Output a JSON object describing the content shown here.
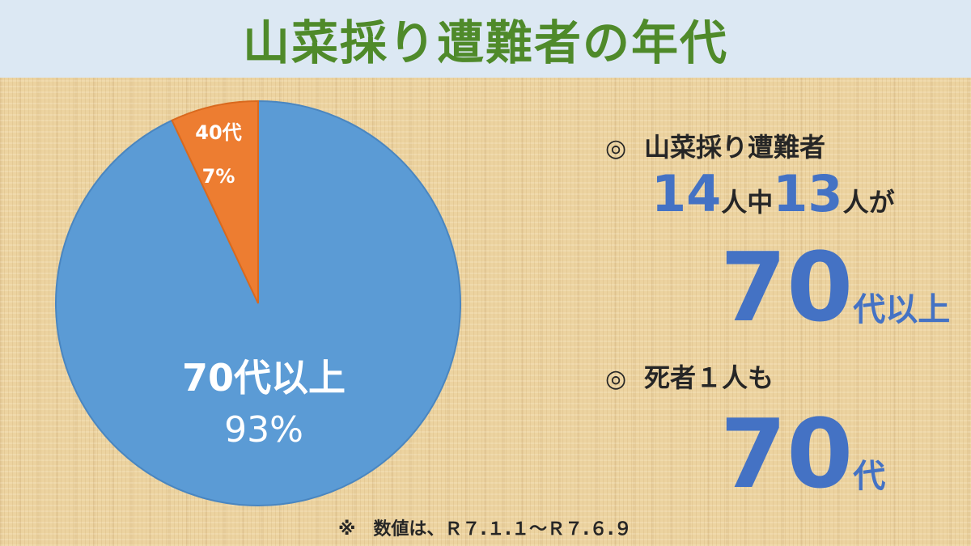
{
  "title": "山菜採り遭難者の年代",
  "chart_data": {
    "type": "pie",
    "slices": [
      {
        "label": "70代以上",
        "percent_label": "93%",
        "value": 93,
        "color": "#5b9bd5"
      },
      {
        "label": "40代",
        "percent_label": "7%",
        "value": 7,
        "color": "#ed7d31"
      }
    ]
  },
  "summary": {
    "mark": "◎",
    "heading1": "山菜採り遭難者",
    "total": "14",
    "unit1": "人中",
    "count": "13",
    "unit2": "人が",
    "age_big": "70",
    "age_suffix": "代以上",
    "heading2": "死者１人も",
    "death_age_big": "70",
    "death_age_suffix": "代"
  },
  "footnote": "※　数値は、Ｒ７.１.１～Ｒ７.６.９",
  "colors": {
    "title": "#4f8a2a",
    "accent": "#4472c4",
    "header_bg": "#dce8f3"
  }
}
